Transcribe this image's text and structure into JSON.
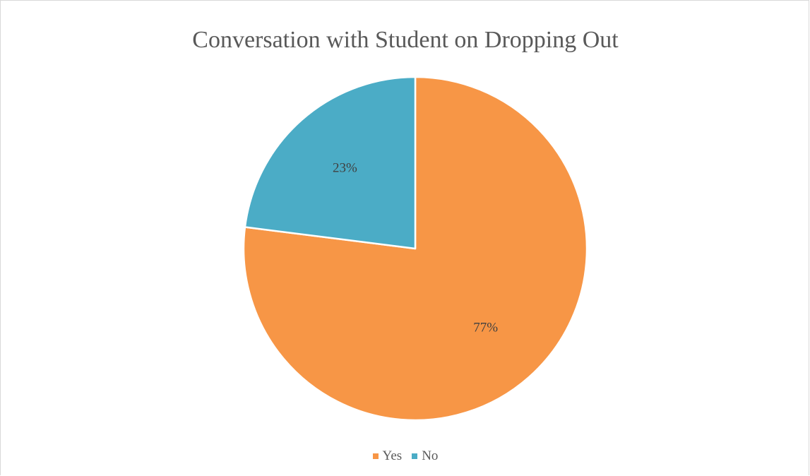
{
  "chart_data": {
    "type": "pie",
    "title": "Conversation with Student on Dropping Out",
    "categories": [
      "Yes",
      "No"
    ],
    "values": [
      77,
      23
    ],
    "value_labels": [
      "77%",
      "23%"
    ],
    "colors": [
      "#F79646",
      "#4BACC6"
    ],
    "start_angle_deg": 0,
    "direction": "clockwise",
    "legend_position": "bottom",
    "legend": [
      {
        "label": "Yes",
        "color": "#F79646"
      },
      {
        "label": "No",
        "color": "#4BACC6"
      }
    ]
  }
}
